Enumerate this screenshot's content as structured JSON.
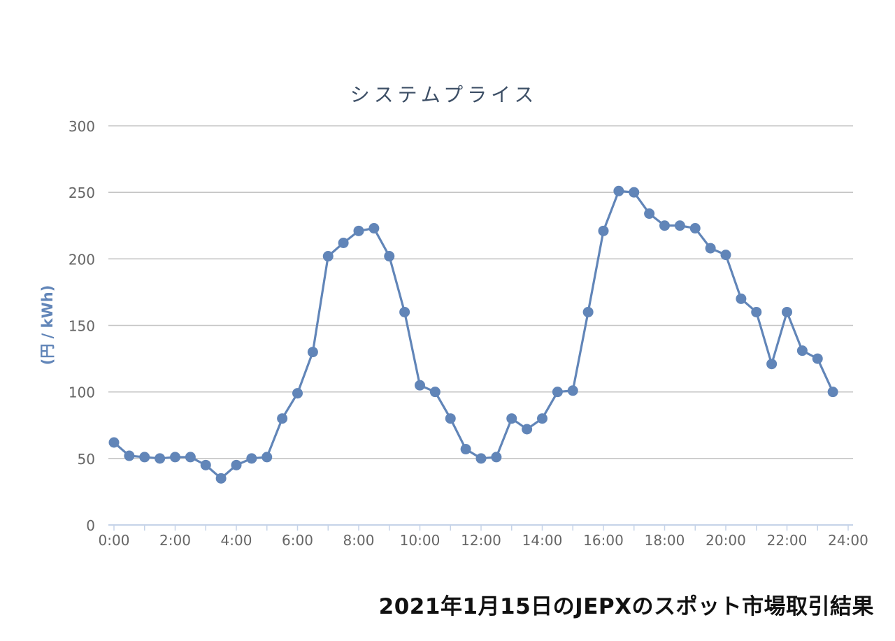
{
  "caption": "2021年1月15日のJEPXのスポット市場取引結果",
  "chart_data": {
    "type": "line",
    "title": "システムプライス",
    "xlabel": "",
    "ylabel": "(円 / kWh)",
    "ylim": [
      0,
      300
    ],
    "xlim": [
      0,
      24
    ],
    "y_ticks": [
      0,
      50,
      100,
      150,
      200,
      250,
      300
    ],
    "x_tick_labels": [
      "0:00",
      "2:00",
      "4:00",
      "6:00",
      "8:00",
      "10:00",
      "12:00",
      "14:00",
      "16:00",
      "18:00",
      "20:00",
      "22:00",
      "24:00"
    ],
    "grid": true,
    "legend": "none",
    "series": [
      {
        "color": "#6185b8",
        "x": [
          0,
          0.5,
          1,
          1.5,
          2,
          2.5,
          3,
          3.5,
          4,
          4.5,
          5,
          5.5,
          6,
          6.5,
          7,
          7.5,
          8,
          8.5,
          9,
          9.5,
          10,
          10.5,
          11,
          11.5,
          12,
          12.5,
          13,
          13.5,
          14,
          14.5,
          15,
          15.5,
          16,
          16.5,
          17,
          17.5,
          18,
          18.5,
          19,
          19.5,
          20,
          20.5,
          21,
          21.5,
          22,
          22.5,
          23,
          23.5
        ],
        "values": [
          62,
          52,
          51,
          50,
          51,
          51,
          45,
          35,
          45,
          50,
          51,
          80,
          99,
          130,
          202,
          212,
          221,
          223,
          202,
          160,
          105,
          100,
          80,
          57,
          50,
          51,
          80,
          72,
          80,
          100,
          101,
          160,
          221,
          251,
          250,
          234,
          225,
          225,
          223,
          208,
          203,
          170,
          160,
          121,
          160,
          131,
          125,
          100
        ]
      }
    ]
  },
  "colors": {
    "line": "#6185b8",
    "grid": "#c5c5c5",
    "axis": "#c5d3e8",
    "title": "#3d4f66",
    "tick": "#666666",
    "ylabel": "#6185b8"
  }
}
